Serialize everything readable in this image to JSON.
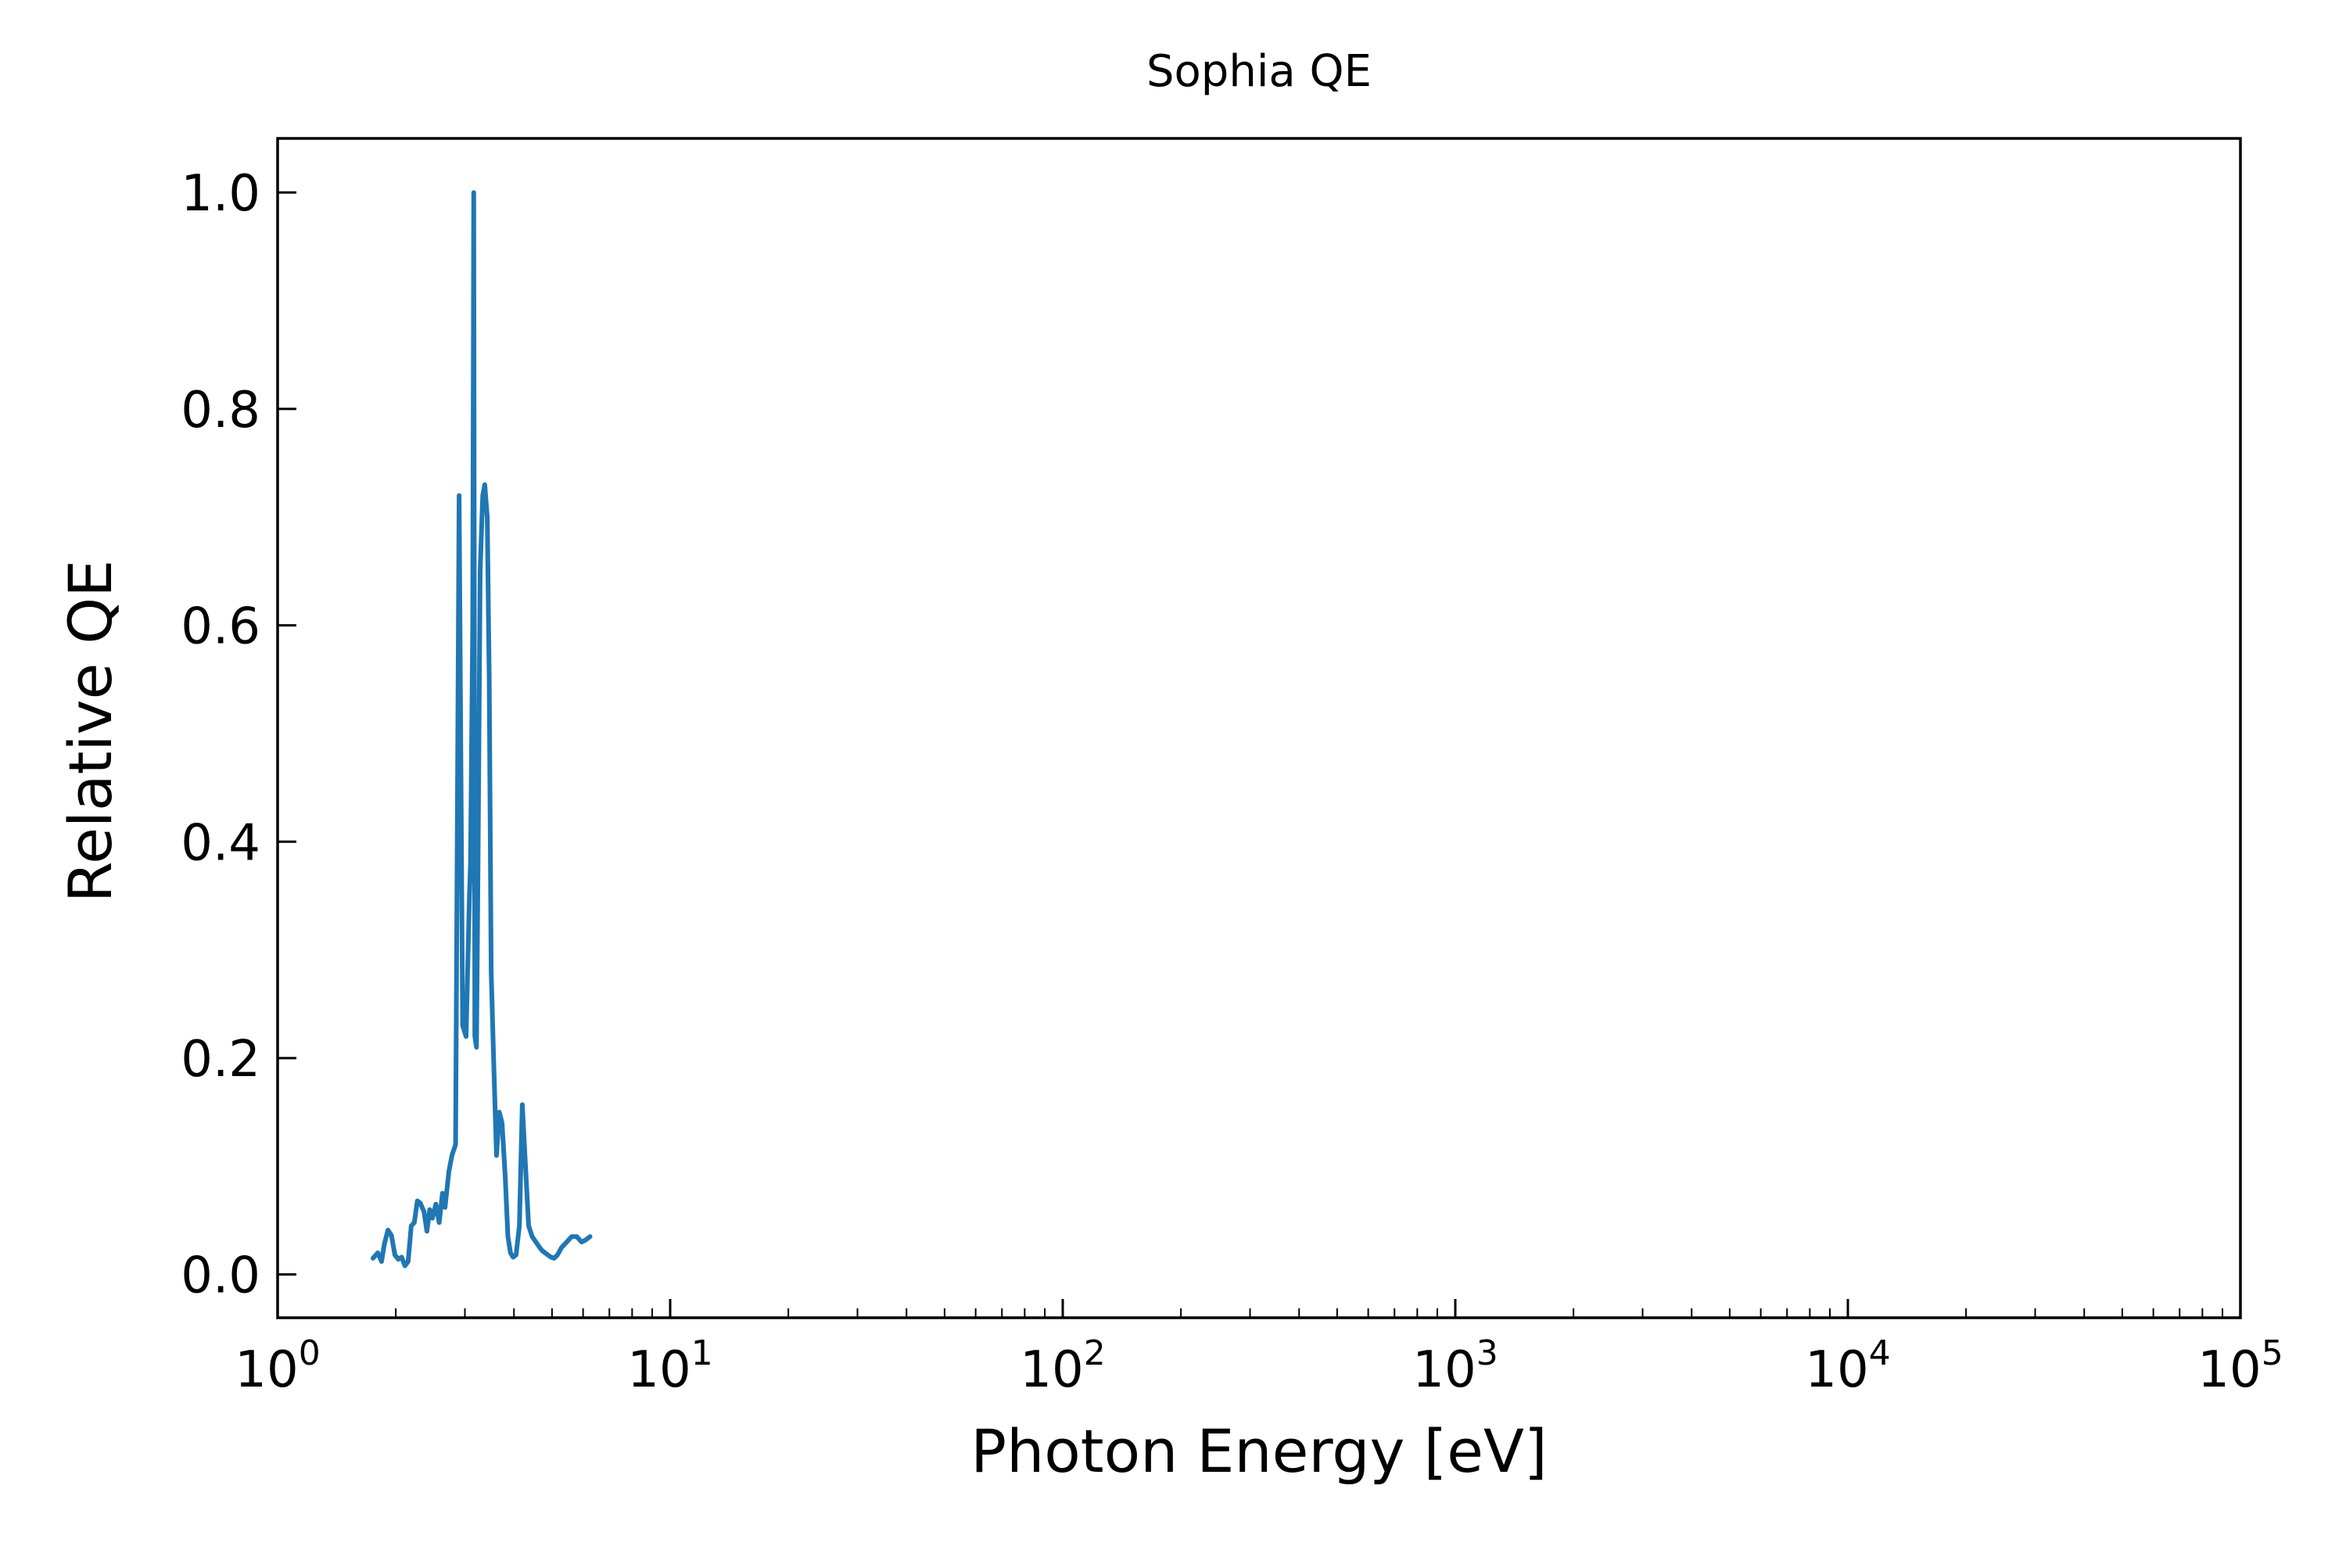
{
  "chart_data": {
    "type": "line",
    "title": "Sophia QE",
    "xlabel": "Photon Energy [eV]",
    "ylabel": "Relative QE",
    "xscale": "log",
    "xlim": [
      1,
      100000
    ],
    "ylim": [
      -0.04,
      1.05
    ],
    "grid": false,
    "legend": "none",
    "xticks": [
      {
        "value": 1,
        "base": "10",
        "exp": "0"
      },
      {
        "value": 10,
        "base": "10",
        "exp": "1"
      },
      {
        "value": 100,
        "base": "10",
        "exp": "2"
      },
      {
        "value": 1000,
        "base": "10",
        "exp": "3"
      },
      {
        "value": 10000,
        "base": "10",
        "exp": "4"
      },
      {
        "value": 100000,
        "base": "10",
        "exp": "5"
      }
    ],
    "yticks": [
      {
        "value": 0.0,
        "label": "0.0"
      },
      {
        "value": 0.2,
        "label": "0.2"
      },
      {
        "value": 0.4,
        "label": "0.4"
      },
      {
        "value": 0.6,
        "label": "0.6"
      },
      {
        "value": 0.8,
        "label": "0.8"
      },
      {
        "value": 1.0,
        "label": "1.0"
      }
    ],
    "series": [
      {
        "color": "#1f77b4",
        "x": [
          1.75,
          1.8,
          1.84,
          1.87,
          1.91,
          1.95,
          1.99,
          2.03,
          2.07,
          2.11,
          2.15,
          2.19,
          2.23,
          2.27,
          2.31,
          2.36,
          2.4,
          2.44,
          2.48,
          2.53,
          2.58,
          2.63,
          2.67,
          2.73,
          2.78,
          2.84,
          2.9,
          2.96,
          3.02,
          3.08,
          3.1,
          3.14,
          3.16,
          3.18,
          3.21,
          3.24,
          3.28,
          3.33,
          3.37,
          3.42,
          3.46,
          3.5,
          3.55,
          3.61,
          3.67,
          3.73,
          3.8,
          3.86,
          3.92,
          3.98,
          4.05,
          4.13,
          4.2,
          4.28,
          4.36,
          4.45,
          4.55,
          4.65,
          4.72,
          4.8,
          4.88,
          4.97,
          5.06,
          5.16,
          5.29,
          5.45,
          5.61,
          5.78,
          5.95,
          6.1,
          6.25
        ],
        "y": [
          0.015,
          0.02,
          0.012,
          0.028,
          0.041,
          0.036,
          0.018,
          0.014,
          0.016,
          0.008,
          0.012,
          0.045,
          0.048,
          0.068,
          0.066,
          0.058,
          0.04,
          0.06,
          0.052,
          0.065,
          0.048,
          0.075,
          0.062,
          0.095,
          0.11,
          0.12,
          0.72,
          0.23,
          0.22,
          0.35,
          0.38,
          0.6,
          1.0,
          0.22,
          0.21,
          0.38,
          0.65,
          0.72,
          0.73,
          0.7,
          0.55,
          0.28,
          0.2,
          0.11,
          0.15,
          0.14,
          0.09,
          0.035,
          0.02,
          0.016,
          0.018,
          0.045,
          0.157,
          0.1,
          0.045,
          0.035,
          0.03,
          0.025,
          0.022,
          0.02,
          0.018,
          0.016,
          0.015,
          0.018,
          0.025,
          0.03,
          0.035,
          0.035,
          0.03,
          0.032,
          0.035
        ]
      }
    ]
  }
}
